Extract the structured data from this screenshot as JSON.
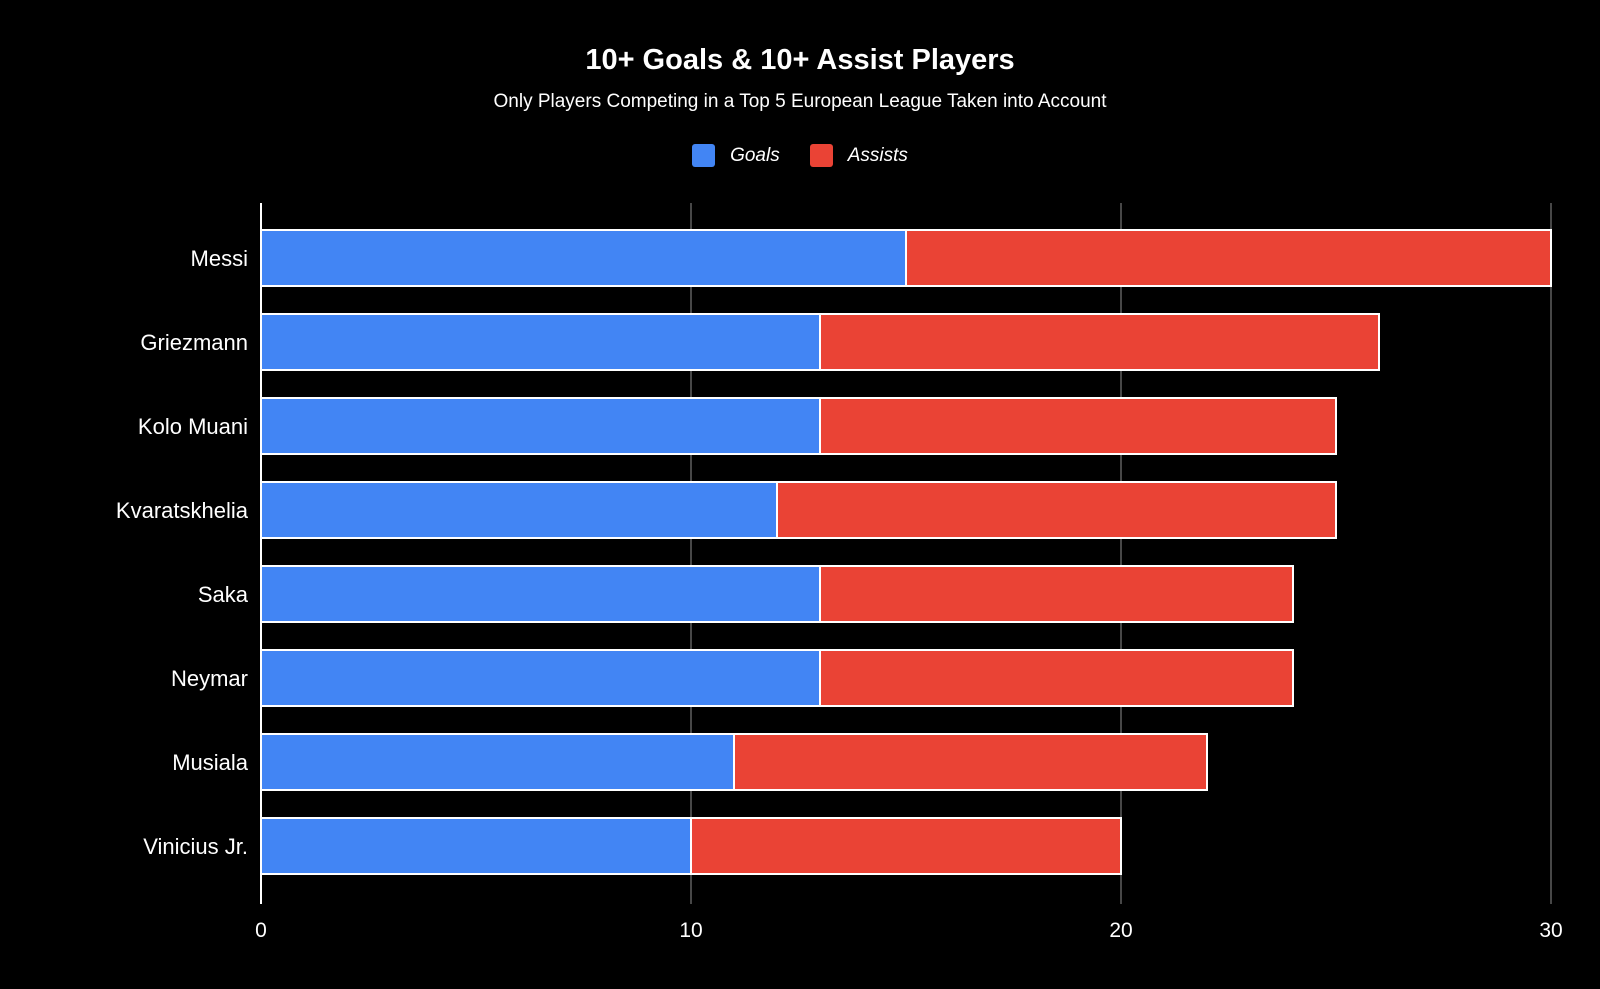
{
  "chart_data": {
    "type": "bar",
    "orientation": "horizontal",
    "stacked": true,
    "title": "10+ Goals & 10+ Assist Players",
    "subtitle": "Only Players Competing in a Top 5 European League Taken into Account",
    "categories": [
      "Messi",
      "Griezmann",
      "Kolo Muani",
      "Kvaratskhelia",
      "Saka",
      "Neymar",
      "Musiala",
      "Vinicius Jr."
    ],
    "series": [
      {
        "name": "Goals",
        "color": "#4285f4",
        "values": [
          15,
          13,
          13,
          12,
          13,
          13,
          11,
          10
        ]
      },
      {
        "name": "Assists",
        "color": "#ea4335",
        "values": [
          15,
          13,
          12,
          13,
          11,
          11,
          11,
          10
        ]
      }
    ],
    "xlim": [
      0,
      30
    ],
    "xticks": [
      "0",
      "10",
      "20",
      "30"
    ],
    "grid": true,
    "legend_position": "top-center",
    "background": "#000000"
  }
}
